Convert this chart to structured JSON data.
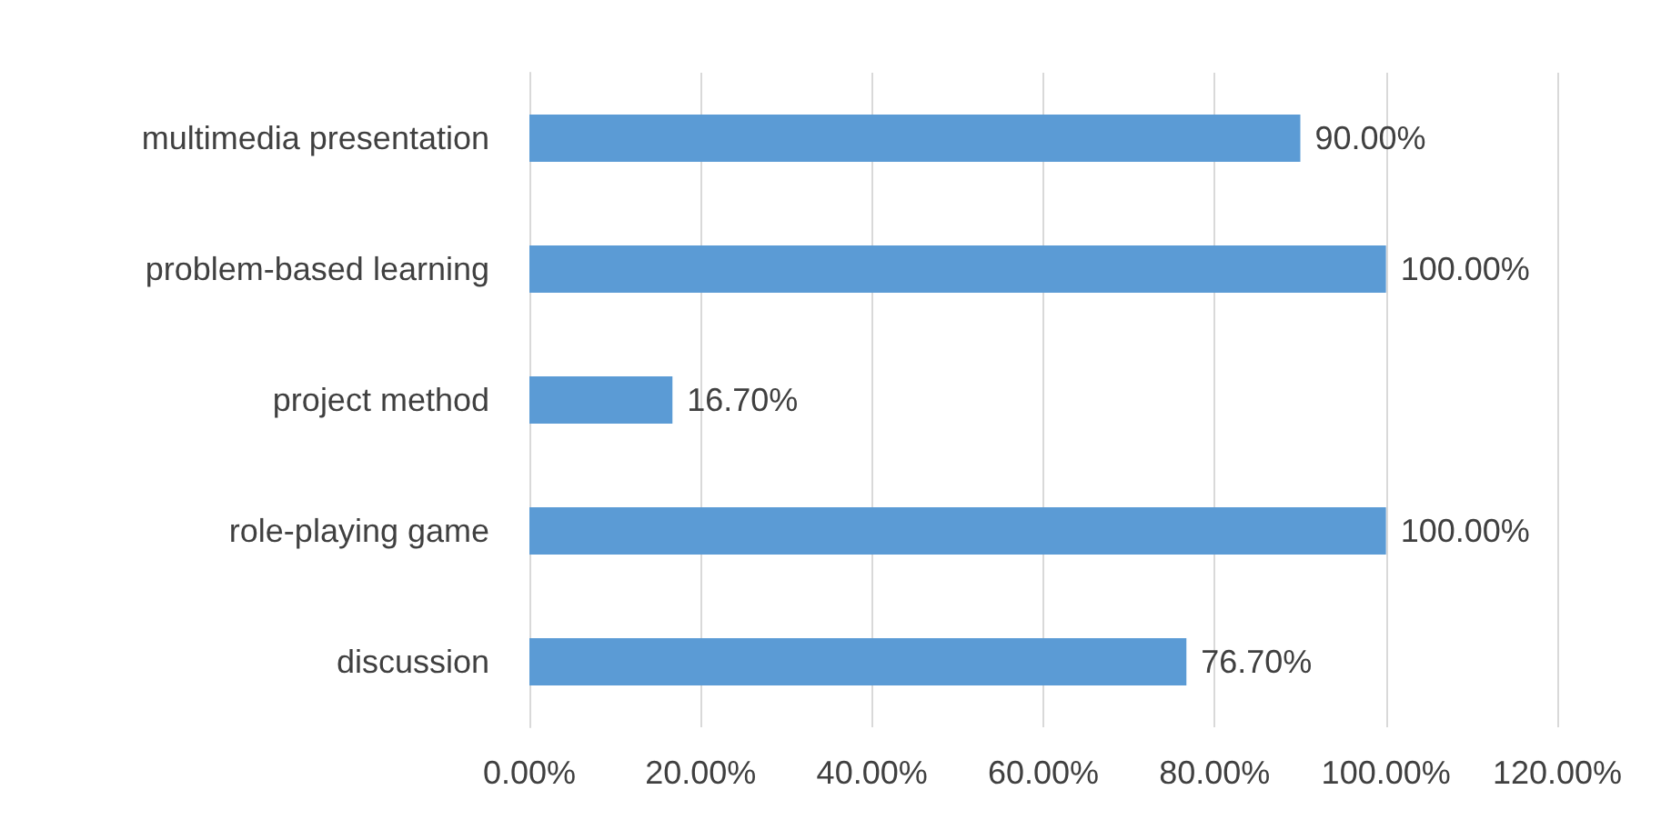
{
  "chart_data": {
    "type": "bar",
    "orientation": "horizontal",
    "categories": [
      "multimedia presentation",
      "problem-based learning",
      "project method",
      "role-playing game",
      "discussion"
    ],
    "values": [
      90,
      100,
      16.7,
      100,
      76.7
    ],
    "value_labels": [
      "90.00%",
      "100.00%",
      "16.70%",
      "100.00%",
      "76.70%"
    ],
    "color": "#5b9bd5",
    "xlim": [
      0,
      120
    ],
    "xticks": [
      {
        "value": 0,
        "label": "0.00%"
      },
      {
        "value": 20,
        "label": "20.00%"
      },
      {
        "value": 40,
        "label": "40.00%"
      },
      {
        "value": 60,
        "label": "60.00%"
      },
      {
        "value": 80,
        "label": "80.00%"
      },
      {
        "value": 100,
        "label": "100.00%"
      },
      {
        "value": 120,
        "label": "120.00%"
      }
    ],
    "grid": "x"
  }
}
